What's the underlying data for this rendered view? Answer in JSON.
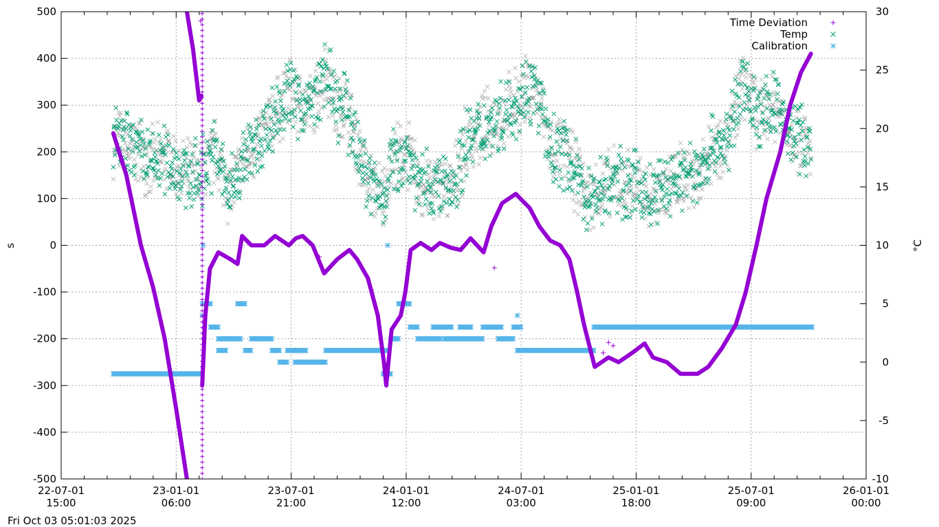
{
  "timestamp": "Fri Oct 03 05:01:03 2025",
  "chart_data": {
    "type": "scatter",
    "title": "",
    "xlabel": "",
    "ylabel": "s",
    "y2label": "°C",
    "x_unit": "hours since 22-07-01 15:00",
    "xlim": [
      0,
      105
    ],
    "ylim": [
      -500,
      500
    ],
    "y2lim": [
      -10,
      30
    ],
    "grid": true,
    "legend_placement": "top-right",
    "x_ticks": [
      {
        "x": 0,
        "label1": "22-07-01",
        "label2": "15:00"
      },
      {
        "x": 15,
        "label1": "23-01-01",
        "label2": "06:00"
      },
      {
        "x": 30,
        "label1": "23-07-01",
        "label2": "21:00"
      },
      {
        "x": 45,
        "label1": "24-01-01",
        "label2": "12:00"
      },
      {
        "x": 60,
        "label1": "24-07-01",
        "label2": "03:00"
      },
      {
        "x": 75,
        "label1": "25-01-01",
        "label2": "18:00"
      },
      {
        "x": 90,
        "label1": "25-07-01",
        "label2": "09:00"
      },
      {
        "x": 105,
        "label1": "26-01-01",
        "label2": "00:00"
      }
    ],
    "y_ticks": [
      "-500",
      "-400",
      "-300",
      "-200",
      "-100",
      "0",
      "100",
      "200",
      "300",
      "400",
      "500"
    ],
    "y2_ticks": [
      "-10",
      "-5",
      "0",
      "5",
      "10",
      "15",
      "20",
      "25",
      "30"
    ],
    "series": [
      {
        "name": "Time Deviation",
        "axis": "y",
        "marker": "+",
        "color": "#9400d3",
        "segments": [
          [
            [
              6.8,
              240
            ],
            [
              8.5,
              150
            ],
            [
              10.4,
              0
            ],
            [
              12,
              -90
            ],
            [
              13.5,
              -200
            ],
            [
              15,
              -350
            ],
            [
              16.4,
              -500
            ]
          ],
          [
            [
              16.4,
              500
            ],
            [
              17.2,
              420
            ],
            [
              18.0,
              310
            ],
            [
              18.3,
              320
            ]
          ],
          [
            [
              18.4,
              -300
            ],
            [
              18.8,
              -150
            ],
            [
              19.4,
              -50
            ],
            [
              20.5,
              -15
            ],
            [
              22.1,
              -30
            ],
            [
              23.0,
              -40
            ],
            [
              23.6,
              20
            ],
            [
              24.8,
              0
            ],
            [
              26.5,
              0
            ],
            [
              27.9,
              20
            ],
            [
              28.8,
              10
            ],
            [
              29.7,
              0
            ],
            [
              30.6,
              15
            ],
            [
              31.5,
              20
            ],
            [
              32.8,
              0
            ],
            [
              34.3,
              -60
            ],
            [
              36.0,
              -30
            ],
            [
              37.6,
              -10
            ],
            [
              38.6,
              -30
            ],
            [
              40.0,
              -70
            ],
            [
              41.3,
              -150
            ],
            [
              42.1,
              -250
            ],
            [
              42.4,
              -300
            ],
            [
              43.1,
              -180
            ],
            [
              44.3,
              -150
            ],
            [
              44.9,
              -100
            ],
            [
              45.6,
              -10
            ],
            [
              46.9,
              5
            ],
            [
              48.3,
              -10
            ],
            [
              49.4,
              5
            ],
            [
              50.8,
              -5
            ],
            [
              52.1,
              -10
            ],
            [
              53.4,
              15
            ],
            [
              55.1,
              -15
            ],
            [
              56.1,
              40
            ],
            [
              57.5,
              90
            ],
            [
              59.3,
              110
            ],
            [
              61.1,
              80
            ],
            [
              62.4,
              40
            ],
            [
              63.8,
              10
            ],
            [
              65.1,
              0
            ],
            [
              66.3,
              -30
            ],
            [
              67.3,
              -100
            ],
            [
              68.2,
              -170
            ],
            [
              69.6,
              -260
            ],
            [
              71.4,
              -240
            ],
            [
              72.7,
              -250
            ],
            [
              74.5,
              -230
            ],
            [
              76.1,
              -210
            ],
            [
              77.2,
              -240
            ],
            [
              79.0,
              -250
            ],
            [
              80.8,
              -275
            ],
            [
              83.0,
              -275
            ],
            [
              84.4,
              -260
            ],
            [
              86.2,
              -220
            ],
            [
              88.0,
              -170
            ],
            [
              89.3,
              -100
            ],
            [
              90.7,
              0
            ],
            [
              92.0,
              100
            ],
            [
              93.8,
              200
            ],
            [
              95.1,
              300
            ],
            [
              96.5,
              370
            ],
            [
              97.8,
              410
            ]
          ]
        ],
        "outliers": [
          [
            18.2,
            480
          ],
          [
            33.7,
            -25
          ],
          [
            40.5,
            -95
          ],
          [
            71.4,
            -208
          ],
          [
            72.0,
            -215
          ],
          [
            70.7,
            -230
          ],
          [
            56.5,
            -48
          ]
        ]
      },
      {
        "name": "Temp",
        "axis": "y2",
        "marker": "x",
        "color": "#009e73",
        "trend": [
          [
            6.8,
            19
          ],
          [
            8,
            18.5
          ],
          [
            10,
            18
          ],
          [
            12,
            17
          ],
          [
            14,
            17.5
          ],
          [
            16,
            16
          ],
          [
            18,
            16
          ],
          [
            20,
            18
          ],
          [
            22,
            14.5
          ],
          [
            24,
            17.5
          ],
          [
            26,
            19
          ],
          [
            28,
            21.5
          ],
          [
            30,
            23
          ],
          [
            31,
            22
          ],
          [
            33,
            22
          ],
          [
            34.5,
            25
          ],
          [
            36,
            21.5
          ],
          [
            37,
            22
          ],
          [
            38.5,
            19
          ],
          [
            40,
            15.5
          ],
          [
            42,
            14
          ],
          [
            43,
            17
          ],
          [
            45,
            18
          ],
          [
            47,
            15
          ],
          [
            49,
            15
          ],
          [
            51,
            15
          ],
          [
            53,
            19
          ],
          [
            55,
            20
          ],
          [
            57,
            21
          ],
          [
            59,
            22
          ],
          [
            61,
            23.5
          ],
          [
            62,
            23
          ],
          [
            64,
            18
          ],
          [
            66,
            18
          ],
          [
            67,
            16
          ],
          [
            69,
            14
          ],
          [
            71,
            15
          ],
          [
            73,
            15.5
          ],
          [
            75,
            15
          ],
          [
            77,
            14
          ],
          [
            79,
            15
          ],
          [
            81,
            16
          ],
          [
            83,
            16
          ],
          [
            85,
            18.5
          ],
          [
            87,
            19
          ],
          [
            89,
            24
          ],
          [
            91,
            21
          ],
          [
            93,
            22
          ],
          [
            95,
            20
          ],
          [
            97,
            19
          ],
          [
            97.8,
            17.5
          ]
        ],
        "spread_c": 2.5
      },
      {
        "name": "Calibration",
        "axis": "y2",
        "marker": "*",
        "color": "#56b4e9",
        "segments": [
          [
            6.8,
            18.4,
            -1
          ],
          [
            18.4,
            19.5,
            5
          ],
          [
            19.5,
            20.5,
            3
          ],
          [
            20.5,
            23.5,
            2
          ],
          [
            20.5,
            21.5,
            1
          ],
          [
            23,
            24,
            5
          ],
          [
            24,
            24.8,
            1
          ],
          [
            24.8,
            27.5,
            2
          ],
          [
            27.5,
            28.5,
            1
          ],
          [
            28.5,
            29.5,
            0
          ],
          [
            29.5,
            32,
            1
          ],
          [
            30.5,
            34.5,
            0
          ],
          [
            34.5,
            42.5,
            1
          ],
          [
            42,
            43,
            -1
          ],
          [
            43,
            44,
            2
          ],
          [
            44,
            45.5,
            5
          ],
          [
            45.5,
            46.5,
            3
          ],
          [
            46.5,
            49.5,
            2
          ],
          [
            48.5,
            51,
            3
          ],
          [
            50,
            53,
            2
          ],
          [
            52,
            53.5,
            3
          ],
          [
            53,
            55,
            2
          ],
          [
            55,
            57.5,
            3
          ],
          [
            57,
            59,
            2
          ],
          [
            59,
            60,
            3
          ],
          [
            59.5,
            69.5,
            1
          ],
          [
            69.5,
            98,
            3
          ]
        ],
        "points": [
          [
            18.5,
            10
          ],
          [
            42.6,
            10
          ],
          [
            18.4,
            4
          ],
          [
            59.5,
            4
          ]
        ]
      }
    ]
  }
}
